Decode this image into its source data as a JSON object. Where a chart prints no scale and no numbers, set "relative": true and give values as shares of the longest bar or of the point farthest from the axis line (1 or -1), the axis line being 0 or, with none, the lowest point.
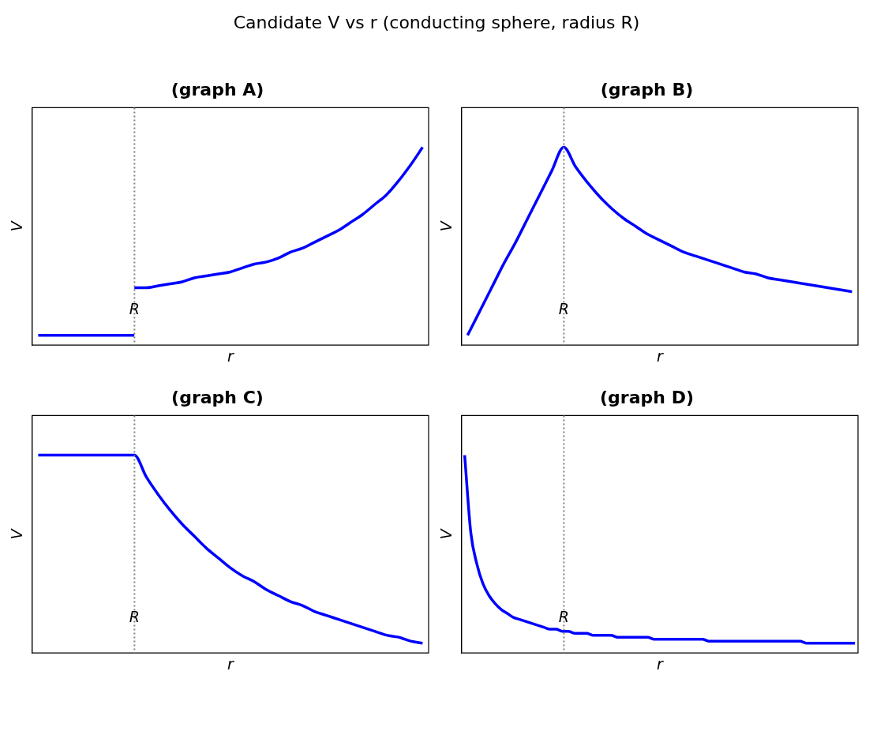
{
  "chart_data": [
    {
      "type": "line",
      "relative": true,
      "title": "(graph A)",
      "xlabel": "r",
      "ylabel": "V",
      "annotations": [
        "Candidate V vs r (conducting sphere, radius R)",
        "R"
      ],
      "legend": false,
      "tick_labels": false,
      "marker": "none",
      "line_style": "solid",
      "categories": [
        null,
        null,
        null,
        null,
        null,
        null,
        null,
        null,
        null,
        null,
        null,
        null,
        null,
        null,
        null,
        null,
        null,
        null,
        null,
        null,
        null,
        null,
        null,
        null,
        null,
        null,
        null,
        null,
        null,
        null,
        null,
        null,
        null
      ],
      "series": [
        {
          "color": "#0000ff",
          "values": [
            0.05,
            0.05,
            0.05,
            0.05,
            0.05,
            0.05,
            0.05,
            0.05,
            0.05,
            null,
            null,
            null,
            null,
            null,
            null,
            null,
            null,
            null,
            null,
            null,
            null,
            null,
            null,
            null,
            null,
            null,
            null,
            null,
            null,
            null,
            null,
            null,
            null
          ]
        },
        {
          "color": "#0000ff",
          "values": [
            null,
            null,
            null,
            null,
            null,
            null,
            null,
            null,
            0.29,
            0.29,
            0.3,
            0.31,
            0.32,
            0.34,
            0.35,
            0.36,
            0.37,
            0.39,
            0.41,
            0.42,
            0.44,
            0.47,
            0.49,
            0.52,
            0.55,
            0.58,
            0.62,
            0.66,
            0.71,
            0.76,
            0.83,
            0.91,
            1.0
          ]
        }
      ]
    },
    {
      "type": "line",
      "relative": true,
      "title": "(graph B)",
      "xlabel": "r",
      "ylabel": "V",
      "annotations": [
        "R"
      ],
      "legend": false,
      "tick_labels": false,
      "marker": "none",
      "line_style": "solid",
      "categories": [
        null,
        null,
        null,
        null,
        null,
        null,
        null,
        null,
        null,
        null,
        null,
        null,
        null,
        null,
        null,
        null,
        null,
        null,
        null,
        null,
        null,
        null,
        null,
        null,
        null,
        null,
        null,
        null,
        null,
        null,
        null,
        null,
        null
      ],
      "series": [
        {
          "color": "#0000ff",
          "values": [
            0.05,
            0.17,
            0.29,
            0.41,
            0.52,
            0.64,
            0.76,
            0.88,
            1.0,
            0.9,
            0.82,
            0.75,
            0.69,
            0.64,
            0.6,
            0.56,
            0.53,
            0.5,
            0.47,
            0.45,
            0.43,
            0.41,
            0.39,
            0.37,
            0.36,
            0.34,
            0.33,
            0.32,
            0.31,
            0.3,
            0.29,
            0.28,
            0.27
          ]
        }
      ]
    },
    {
      "type": "line",
      "relative": true,
      "title": "(graph C)",
      "xlabel": "r",
      "ylabel": "V",
      "annotations": [
        "R"
      ],
      "legend": false,
      "tick_labels": false,
      "marker": "none",
      "line_style": "solid",
      "categories": [
        null,
        null,
        null,
        null,
        null,
        null,
        null,
        null,
        null,
        null,
        null,
        null,
        null,
        null,
        null,
        null,
        null,
        null,
        null,
        null,
        null,
        null,
        null,
        null,
        null,
        null,
        null,
        null,
        null,
        null,
        null,
        null,
        null
      ],
      "series": [
        {
          "color": "#0000ff",
          "values": [
            1.0,
            1.0,
            1.0,
            1.0,
            1.0,
            1.0,
            1.0,
            1.0,
            1.0,
            0.89,
            0.8,
            0.72,
            0.65,
            0.59,
            0.53,
            0.48,
            0.43,
            0.39,
            0.36,
            0.32,
            0.29,
            0.26,
            0.24,
            0.21,
            0.19,
            0.17,
            0.15,
            0.13,
            0.11,
            0.09,
            0.08,
            0.06,
            0.05
          ]
        }
      ]
    },
    {
      "type": "line",
      "relative": true,
      "title": "(graph D)",
      "xlabel": "r",
      "ylabel": "V",
      "annotations": [
        "R"
      ],
      "legend": false,
      "tick_labels": false,
      "marker": "none",
      "line_style": "solid",
      "categories": [
        null,
        null,
        null,
        null,
        null,
        null,
        null,
        null,
        null,
        null,
        null,
        null,
        null,
        null,
        null,
        null,
        null,
        null,
        null,
        null,
        null,
        null,
        null,
        null,
        null,
        null,
        null,
        null,
        null,
        null,
        null,
        null,
        null,
        null,
        null,
        null,
        null,
        null,
        null,
        null,
        null,
        null,
        null,
        null,
        null,
        null,
        null,
        null,
        null,
        null,
        null,
        null,
        null,
        null,
        null,
        null,
        null,
        null,
        null,
        null,
        null,
        null,
        null,
        null,
        null
      ],
      "series": [
        {
          "color": "#0000ff",
          "values": [
            1.0,
            0.61,
            0.45,
            0.35,
            0.29,
            0.25,
            0.22,
            0.2,
            0.18,
            0.17,
            0.16,
            0.15,
            0.14,
            0.13,
            0.12,
            0.12,
            0.11,
            0.11,
            0.1,
            0.1,
            0.1,
            0.09,
            0.09,
            0.09,
            0.09,
            0.08,
            0.08,
            0.08,
            0.08,
            0.08,
            0.08,
            0.07,
            0.07,
            0.07,
            0.07,
            0.07,
            0.07,
            0.07,
            0.07,
            0.07,
            0.06,
            0.06,
            0.06,
            0.06,
            0.06,
            0.06,
            0.06,
            0.06,
            0.06,
            0.06,
            0.06,
            0.06,
            0.06,
            0.06,
            0.06,
            0.06,
            0.05,
            0.05,
            0.05,
            0.05,
            0.05,
            0.05,
            0.05,
            0.05,
            0.05
          ]
        }
      ]
    }
  ]
}
